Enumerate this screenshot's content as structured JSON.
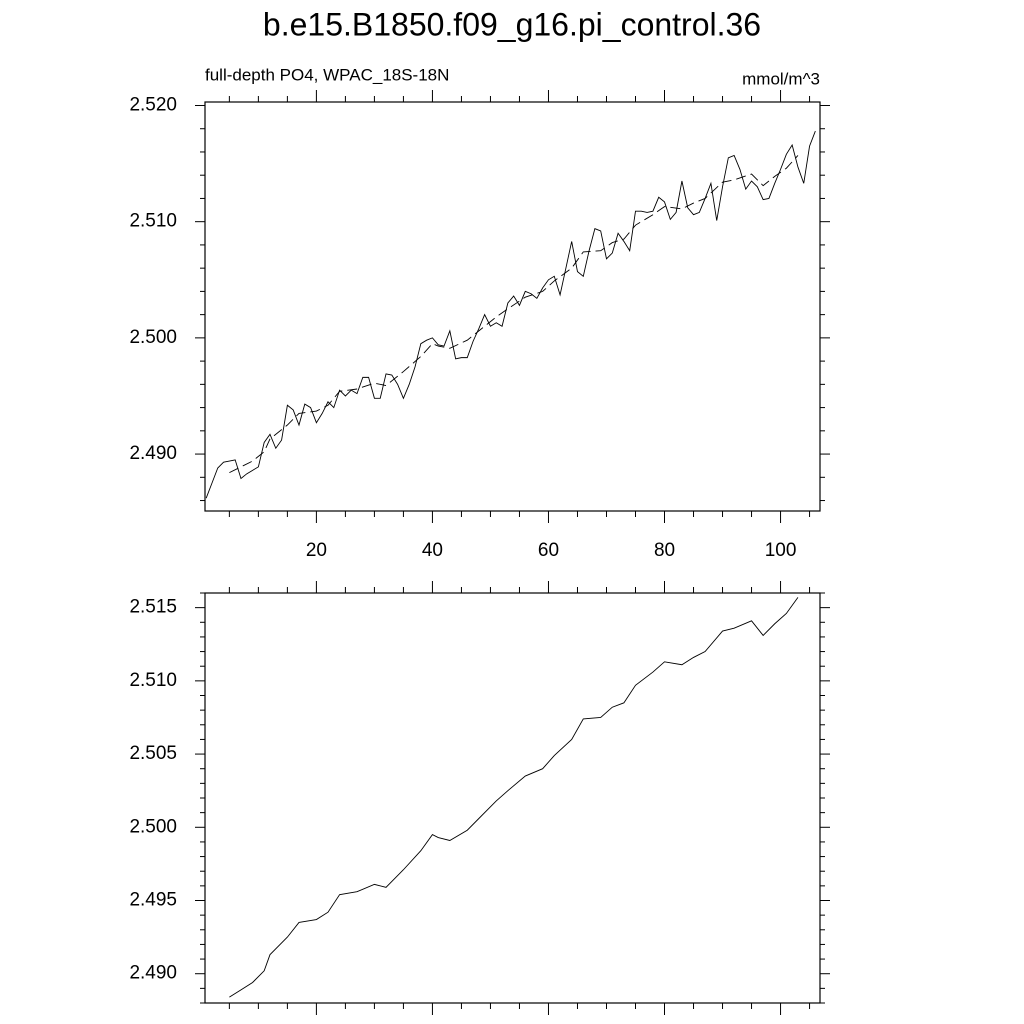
{
  "title": "b.e15.B1850.f09_g16.pi_control.36",
  "chart_data": [
    {
      "type": "line",
      "left_label": "full-depth PO4, WPAC_18S-18N",
      "right_label": "mmol/m^3",
      "xlim": [
        0.8,
        106.8
      ],
      "xticks": [
        20,
        40,
        60,
        80,
        100
      ],
      "ylim": [
        2.4851,
        2.5203
      ],
      "yticks": [
        {
          "value": 2.49,
          "label": "2.490"
        },
        {
          "value": 2.5,
          "label": "2.500"
        },
        {
          "value": 2.51,
          "label": "2.510"
        },
        {
          "value": 2.52,
          "label": "2.520"
        }
      ],
      "series": [
        {
          "color": "#000000",
          "dash": false,
          "x": [
            1,
            2,
            3,
            4,
            5,
            6,
            7,
            8,
            9,
            10,
            11,
            12,
            13,
            14,
            15,
            16,
            17,
            18,
            19,
            20,
            21,
            22,
            23,
            24,
            25,
            26,
            27,
            28,
            29,
            30,
            31,
            32,
            33,
            34,
            35,
            36,
            37,
            38,
            39,
            40,
            41,
            42,
            43,
            44,
            45,
            46,
            47,
            48,
            49,
            50,
            51,
            52,
            53,
            54,
            55,
            56,
            57,
            58,
            59,
            60,
            61,
            62,
            63,
            64,
            65,
            66,
            67,
            68,
            69,
            70,
            71,
            72,
            73,
            74,
            75,
            76,
            77,
            78,
            79,
            80,
            81,
            82,
            83,
            84,
            85,
            86,
            87,
            88,
            89,
            90,
            91,
            92,
            93,
            94,
            95,
            96,
            97,
            98,
            99,
            100,
            101,
            102,
            103,
            104,
            105,
            106
          ],
          "values": [
            2.4862,
            2.4875,
            2.4888,
            2.4893,
            2.4894,
            2.4895,
            2.4879,
            2.4883,
            2.4886,
            2.4889,
            2.491,
            2.4917,
            2.4905,
            2.4912,
            2.4942,
            2.4938,
            2.4925,
            2.4943,
            2.494,
            2.4927,
            2.4935,
            2.4945,
            2.494,
            2.4955,
            2.495,
            2.4955,
            2.4952,
            2.4966,
            2.4966,
            2.4948,
            2.4948,
            2.4969,
            2.4968,
            2.496,
            2.4948,
            2.496,
            2.4975,
            2.4995,
            2.4998,
            2.5,
            2.4994,
            2.4993,
            2.5006,
            2.4982,
            2.4983,
            2.4983,
            2.4997,
            2.5008,
            2.502,
            2.501,
            2.5013,
            2.501,
            2.503,
            2.5036,
            2.5028,
            2.504,
            2.5038,
            2.5034,
            2.5043,
            2.505,
            2.5053,
            2.5037,
            2.506,
            2.5083,
            2.5057,
            2.5053,
            2.5075,
            2.5094,
            2.5092,
            2.5068,
            2.5073,
            2.509,
            2.5083,
            2.5075,
            2.5109,
            2.5109,
            2.5108,
            2.5109,
            2.5121,
            2.5117,
            2.5102,
            2.5108,
            2.5135,
            2.5112,
            2.5106,
            2.5108,
            2.512,
            2.5133,
            2.5101,
            2.513,
            2.5155,
            2.5157,
            2.5145,
            2.5128,
            2.5135,
            2.513,
            2.5119,
            2.512,
            2.5133,
            2.5145,
            2.5158,
            2.5166,
            2.5147,
            2.5133,
            2.5165,
            2.5178
          ]
        },
        {
          "color": "#000000",
          "dash": true,
          "x": [
            5,
            7,
            9,
            11,
            12,
            15,
            17,
            20,
            22,
            24,
            27,
            30,
            32,
            35,
            38,
            40,
            41,
            43,
            46,
            48,
            51,
            53,
            56,
            59,
            61,
            64,
            66,
            69,
            71,
            73,
            75,
            78,
            80,
            83,
            85,
            87,
            90,
            92,
            95,
            97,
            99,
            101,
            103
          ],
          "values": [
            2.4884,
            2.4889,
            2.4894,
            2.4902,
            2.4913,
            2.4925,
            2.4935,
            2.4937,
            2.4942,
            2.4954,
            2.4956,
            2.4961,
            2.4959,
            2.4971,
            2.4984,
            2.4995,
            2.4993,
            2.4991,
            2.4998,
            2.5006,
            2.5018,
            2.5025,
            2.5035,
            2.504,
            2.5049,
            2.506,
            2.5074,
            2.5075,
            2.5082,
            2.5085,
            2.5097,
            2.5106,
            2.5113,
            2.5111,
            2.5116,
            2.512,
            2.5134,
            2.5136,
            2.5141,
            2.5131,
            2.5139,
            2.5146,
            2.5157
          ]
        }
      ]
    },
    {
      "type": "line",
      "xlim": [
        0.8,
        106.8
      ],
      "xticks": [
        20,
        40,
        60,
        80,
        100
      ],
      "ylim": [
        2.488,
        2.516
      ],
      "yticks": [
        {
          "value": 2.49,
          "label": "2.490"
        },
        2.495,
        {
          "value": 2.5,
          "label": "2.500"
        },
        2.505,
        {
          "value": 2.51,
          "label": "2.510"
        },
        2.515
      ],
      "series": [
        {
          "color": "#000000",
          "dash": false,
          "x": [
            5,
            7,
            9,
            11,
            12,
            15,
            17,
            20,
            22,
            24,
            27,
            30,
            32,
            35,
            38,
            40,
            41,
            43,
            46,
            48,
            51,
            53,
            56,
            59,
            61,
            64,
            66,
            69,
            71,
            73,
            75,
            78,
            80,
            83,
            85,
            87,
            90,
            92,
            95,
            97,
            99,
            101,
            103
          ],
          "values": [
            2.4884,
            2.4889,
            2.4894,
            2.4902,
            2.4913,
            2.4925,
            2.4935,
            2.4937,
            2.4942,
            2.4954,
            2.4956,
            2.4961,
            2.4959,
            2.4971,
            2.4984,
            2.4995,
            2.4993,
            2.4991,
            2.4998,
            2.5006,
            2.5018,
            2.5025,
            2.5035,
            2.504,
            2.5049,
            2.506,
            2.5074,
            2.5075,
            2.5082,
            2.5085,
            2.5097,
            2.5106,
            2.5113,
            2.5111,
            2.5116,
            2.512,
            2.5134,
            2.5136,
            2.5141,
            2.5131,
            2.5139,
            2.5146,
            2.5157
          ]
        }
      ]
    }
  ]
}
